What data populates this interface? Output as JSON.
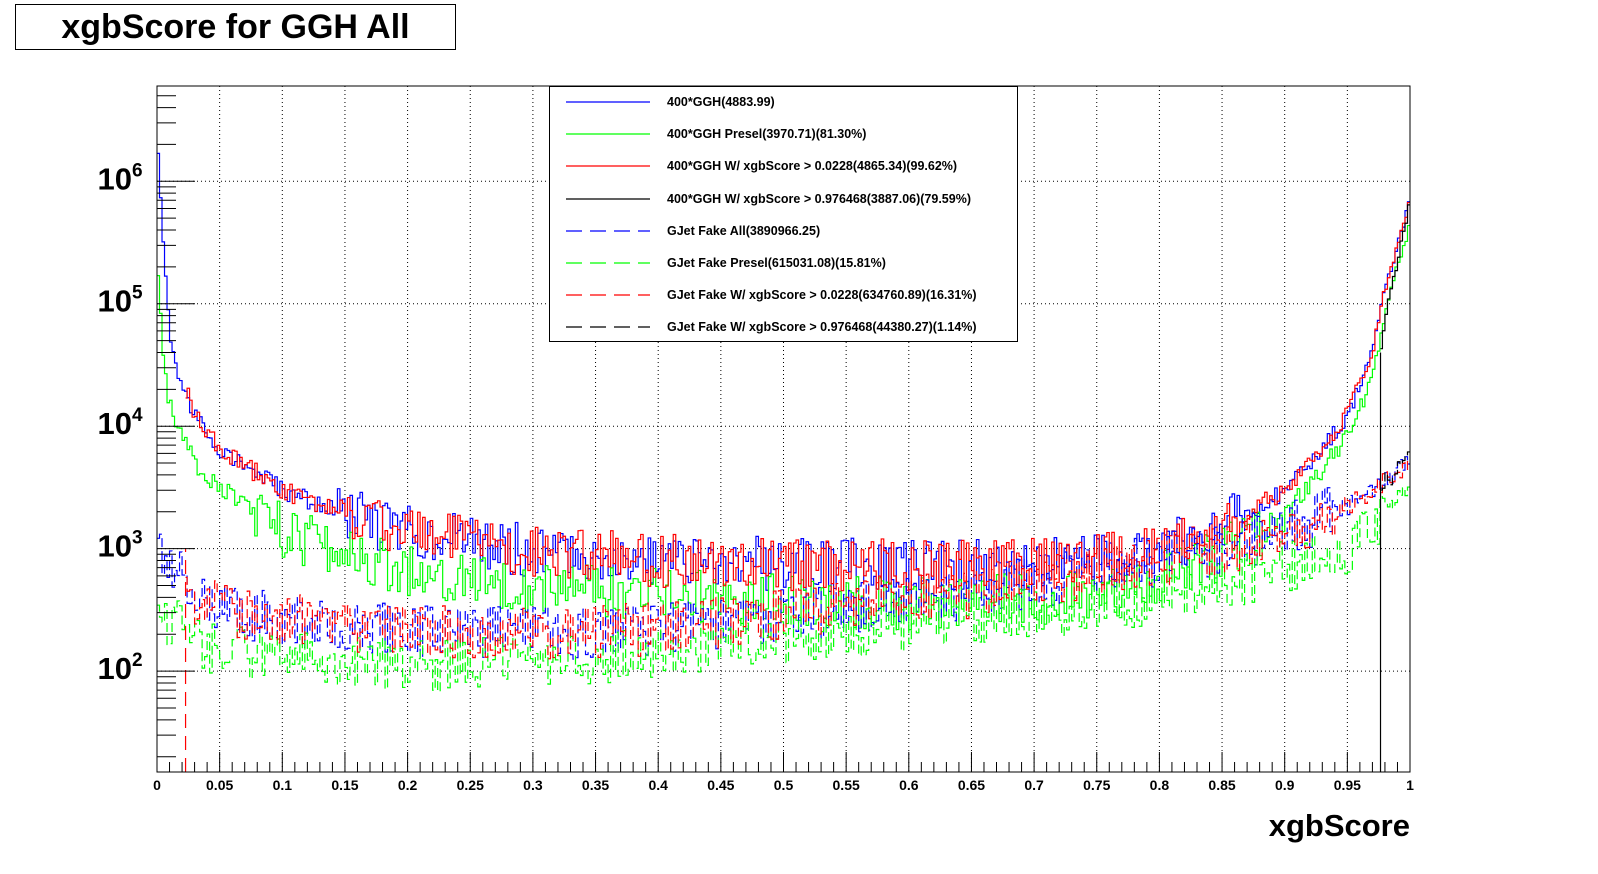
{
  "title": "xgbScore for GGH All",
  "chart_data": {
    "type": "line",
    "xlabel": "xgbScore",
    "ylabel": "",
    "xlim": [
      0,
      1
    ],
    "ylim": [
      15,
      6000000
    ],
    "log_y": true,
    "grid": true,
    "legend_position": "top-center",
    "x_ticks": [
      "0",
      "0.05",
      "0.1",
      "0.15",
      "0.2",
      "0.25",
      "0.3",
      "0.35",
      "0.4",
      "0.45",
      "0.5",
      "0.55",
      "0.6",
      "0.65",
      "0.7",
      "0.75",
      "0.8",
      "0.85",
      "0.9",
      "0.95",
      "1"
    ],
    "y_ticks": [
      {
        "base": "10",
        "exp": "2",
        "value": 100
      },
      {
        "base": "10",
        "exp": "3",
        "value": 1000
      },
      {
        "base": "10",
        "exp": "4",
        "value": 10000
      },
      {
        "base": "10",
        "exp": "5",
        "value": 100000
      },
      {
        "base": "10",
        "exp": "6",
        "value": 1000000
      }
    ],
    "series": [
      {
        "name": "400*GGH(4883.99)",
        "color": "#0000ff",
        "dash": "solid",
        "x": [
          0.0,
          0.005,
          0.01,
          0.015,
          0.02,
          0.03,
          0.05,
          0.1,
          0.15,
          0.2,
          0.3,
          0.4,
          0.5,
          0.6,
          0.7,
          0.75,
          0.8,
          0.85,
          0.9,
          0.95,
          0.97,
          0.98,
          0.99,
          1.0
        ],
        "y": [
          2800000,
          300000,
          60000,
          30000,
          20000,
          12000,
          6500,
          3000,
          1900,
          1400,
          950,
          800,
          750,
          720,
          760,
          820,
          1000,
          1500,
          3000,
          12000,
          40000,
          130000,
          300000,
          700000
        ]
      },
      {
        "name": "400*GGH Presel(3970.71)(81.30%)",
        "color": "#00ff00",
        "dash": "solid",
        "x": [
          0.0,
          0.005,
          0.01,
          0.02,
          0.03,
          0.05,
          0.1,
          0.15,
          0.2,
          0.3,
          0.4,
          0.5,
          0.6,
          0.7,
          0.75,
          0.8,
          0.85,
          0.9,
          0.95,
          0.97,
          0.98,
          0.99,
          1.0
        ],
        "y": [
          250000,
          40000,
          15000,
          8000,
          5000,
          3200,
          1400,
          900,
          680,
          500,
          420,
          380,
          360,
          380,
          420,
          560,
          900,
          1900,
          8000,
          25000,
          80000,
          200000,
          450000
        ]
      },
      {
        "name": "400*GGH W/ xgbScore > 0.0228(4865.34)(99.62%)",
        "color": "#ff0000",
        "dash": "solid",
        "x": [
          0.0228,
          0.03,
          0.05,
          0.1,
          0.15,
          0.2,
          0.3,
          0.4,
          0.5,
          0.6,
          0.7,
          0.75,
          0.8,
          0.85,
          0.9,
          0.95,
          0.97,
          0.98,
          0.99,
          1.0
        ],
        "y": [
          20000,
          12000,
          6500,
          3000,
          1900,
          1400,
          950,
          800,
          750,
          720,
          760,
          820,
          1000,
          1500,
          3000,
          12000,
          40000,
          130000,
          300000,
          700000
        ]
      },
      {
        "name": "400*GGH W/ xgbScore > 0.976468(3887.06)(79.59%)",
        "color": "#000000",
        "dash": "solid",
        "x": [
          0.976468,
          0.98,
          0.985,
          0.99,
          0.995,
          1.0
        ],
        "y": [
          40000,
          75000,
          130000,
          220000,
          380000,
          700000
        ]
      },
      {
        "name": "GJet Fake All(3890966.25)",
        "color": "#0000ff",
        "dash": "dashed",
        "x": [
          0.0,
          0.005,
          0.01,
          0.015,
          0.02,
          0.03,
          0.05,
          0.1,
          0.15,
          0.2,
          0.3,
          0.4,
          0.5,
          0.6,
          0.7,
          0.75,
          0.8,
          0.85,
          0.9,
          0.95,
          0.98,
          1.0
        ],
        "y": [
          1500,
          900,
          750,
          650,
          550,
          450,
          330,
          260,
          240,
          210,
          200,
          220,
          280,
          380,
          520,
          650,
          800,
          1000,
          1400,
          2200,
          3600,
          5000
        ]
      },
      {
        "name": "GJet Fake Presel(615031.08)(15.81%)",
        "color": "#00ff00",
        "dash": "dashed",
        "x": [
          0.0,
          0.02,
          0.03,
          0.05,
          0.1,
          0.15,
          0.2,
          0.3,
          0.4,
          0.5,
          0.6,
          0.7,
          0.75,
          0.8,
          0.85,
          0.9,
          0.95,
          0.98,
          1.0
        ],
        "y": [
          280,
          250,
          180,
          150,
          130,
          120,
          110,
          120,
          140,
          180,
          240,
          300,
          340,
          400,
          500,
          700,
          1000,
          2000,
          3500
        ]
      },
      {
        "name": "GJet Fake W/ xgbScore > 0.0228(634760.89)(16.31%)",
        "color": "#ff0000",
        "dash": "dashed",
        "x": [
          0.0228,
          0.03,
          0.05,
          0.1,
          0.15,
          0.2,
          0.3,
          0.4,
          0.5,
          0.6,
          0.7,
          0.75,
          0.8,
          0.85,
          0.9,
          0.95,
          0.98,
          1.0
        ],
        "y": [
          450,
          400,
          330,
          260,
          240,
          210,
          200,
          220,
          280,
          380,
          520,
          650,
          800,
          1000,
          1400,
          2200,
          3600,
          5000
        ]
      },
      {
        "name": "GJet Fake W/ xgbScore > 0.976468(44380.27)(1.14%)",
        "color": "#000000",
        "dash": "dashed",
        "x": [
          0.976468,
          0.98,
          0.985,
          0.99,
          0.995,
          1.0
        ],
        "y": [
          3000,
          3400,
          3900,
          4500,
          5200,
          6000
        ]
      }
    ],
    "cut_lines": [
      {
        "x": 0.0228,
        "color": "#ff0000",
        "dash": "dashed",
        "y_top": 1000
      },
      {
        "x": 0.976468,
        "color": "#000000",
        "dash": "solid",
        "y_top": 40000
      }
    ]
  }
}
